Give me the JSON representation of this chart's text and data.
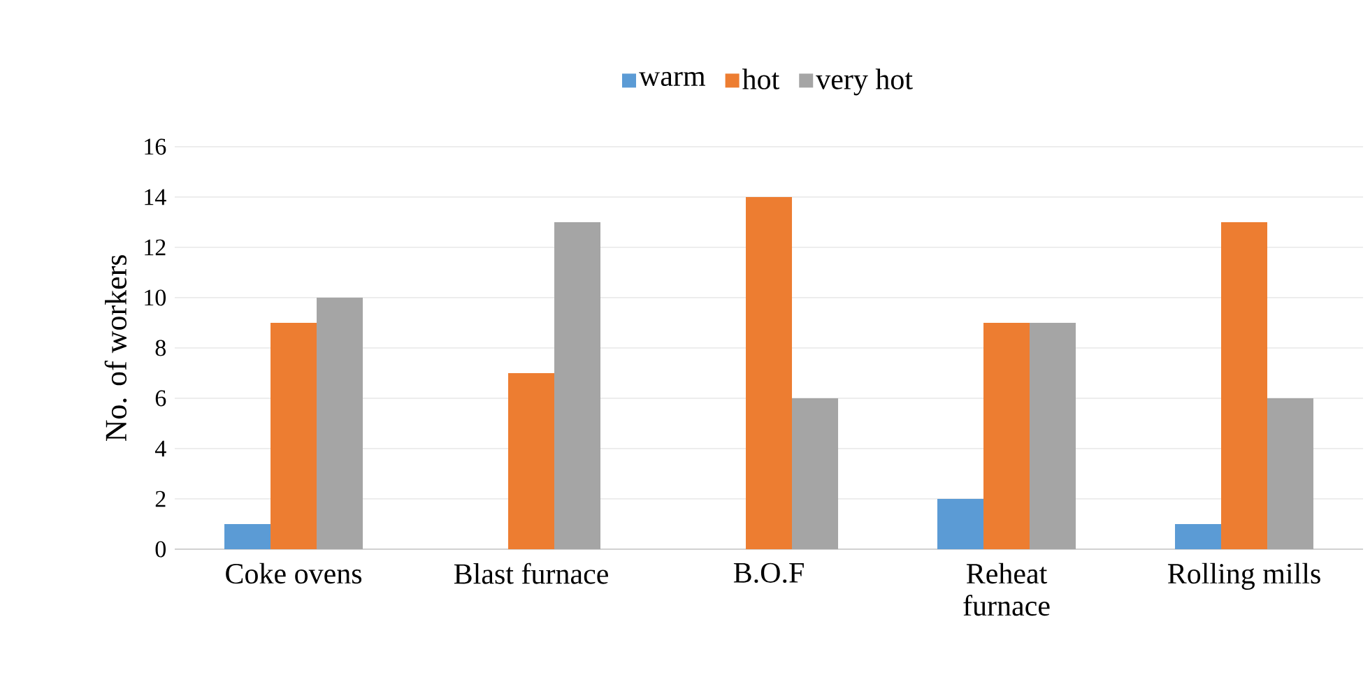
{
  "chart_data": {
    "type": "bar",
    "ylabel": "No. of workers",
    "categories": [
      "Coke ovens",
      "Blast furnace",
      "B.O.F",
      "Reheat furnace",
      "Rolling mills"
    ],
    "series": [
      {
        "name": "warm",
        "color": "#5b9bd5",
        "values": [
          1,
          0,
          0,
          2,
          1
        ]
      },
      {
        "name": "hot",
        "color": "#ed7d31",
        "values": [
          9,
          7,
          14,
          9,
          13
        ]
      },
      {
        "name": "very hot",
        "color": "#a5a5a5",
        "values": [
          10,
          13,
          6,
          9,
          6
        ]
      }
    ],
    "ylim": [
      0,
      16
    ],
    "yticks": [
      0,
      2,
      4,
      6,
      8,
      10,
      12,
      14,
      16
    ],
    "grid": "y",
    "legend": "top"
  }
}
